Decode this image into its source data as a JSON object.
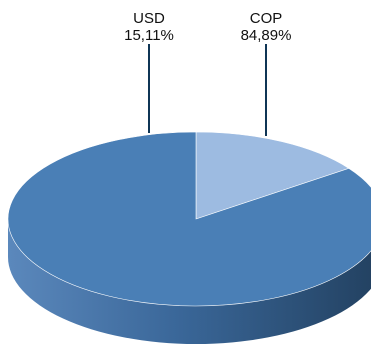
{
  "chart_data": {
    "type": "pie",
    "style": "3d",
    "series": [
      {
        "label_category": "USD",
        "label_value": "15,11%",
        "value": 15.11,
        "color": "#9DBBE1",
        "side_color": "#6E90BC"
      },
      {
        "label_category": "COP",
        "label_value": "84,89%",
        "value": 84.89,
        "color": "#4A7FB6",
        "side_color": "#2E5580"
      }
    ],
    "leader_line_color": "#0F3555",
    "start_angle_degrees": 90,
    "direction": "clockwise"
  }
}
